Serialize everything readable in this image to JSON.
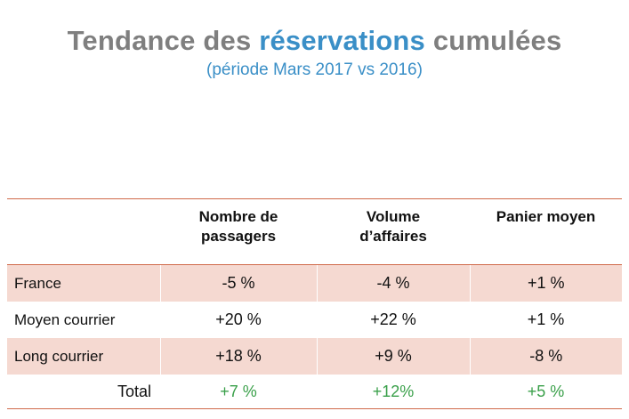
{
  "title": {
    "part1": "Tendance des ",
    "accent": "réservations",
    "part2": " cumulées",
    "subtitle": "(période Mars 2017 vs 2016)"
  },
  "table": {
    "headers": [
      "",
      "Nombre de passagers",
      "Volume d’affaires",
      "Panier moyen"
    ],
    "header_lines": [
      [],
      [
        "Nombre de",
        "passagers"
      ],
      [
        "Volume",
        "d’affaires"
      ],
      [
        "Panier moyen"
      ]
    ],
    "rows": [
      {
        "label": "France",
        "values": [
          "-5 %",
          "-4 %",
          "+1 %"
        ]
      },
      {
        "label": "Moyen courrier",
        "values": [
          "+20 %",
          "+22 %",
          "+1 %"
        ]
      },
      {
        "label": "Long courrier",
        "values": [
          "+18 %",
          "+9 %",
          "-8 %"
        ]
      }
    ],
    "total": {
      "label": "Total",
      "values": [
        "+7 %",
        "+12%",
        "+5 %"
      ]
    }
  },
  "colors": {
    "title_gray": "#7f7f7f",
    "accent_blue": "#3a8fc7",
    "rule_orange": "#d06a4a",
    "shade_pink": "#f5d9d1",
    "positive_green": "#3aa04a"
  }
}
